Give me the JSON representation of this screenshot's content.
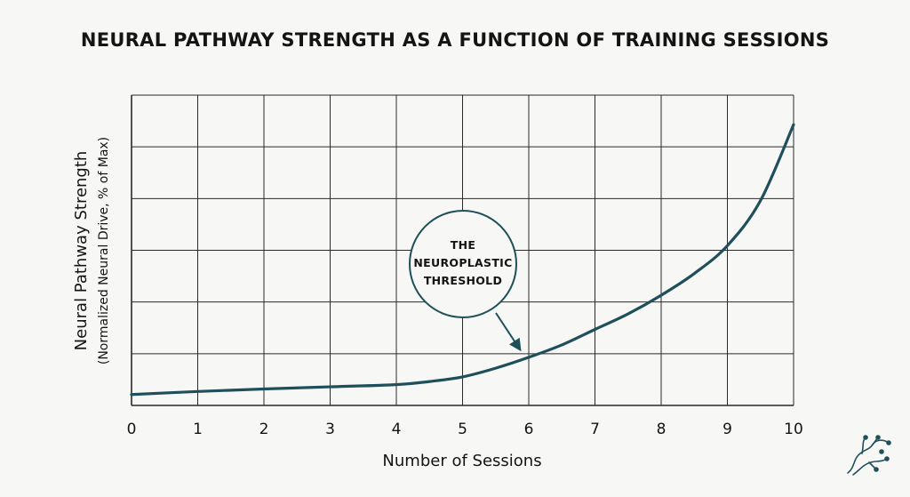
{
  "title": "NEURAL PATHWAY STRENGTH AS A FUNCTION OF TRAINING SESSIONS",
  "chart_data": {
    "type": "line",
    "title": "NEURAL PATHWAY STRENGTH AS A FUNCTION OF TRAINING SESSIONS",
    "xlabel": "Number of Sessions",
    "ylabel": "Neural Pathway Strength",
    "ylabel_sub": "(Normalized Neural Drive, % of Max)",
    "xlim": [
      0,
      10
    ],
    "ylim": [
      0,
      100
    ],
    "x_ticks": [
      "0",
      "1",
      "2",
      "3",
      "4",
      "5",
      "6",
      "7",
      "8",
      "9",
      "10"
    ],
    "y_tick_labels_shown": false,
    "grid": true,
    "line_color": "#1f4f5a",
    "series": [
      {
        "x": [
          0,
          1,
          2,
          3,
          4,
          4.5,
          5,
          5.5,
          6,
          6.5,
          7,
          7.5,
          8,
          8.5,
          9,
          9.5,
          10
        ],
        "y": [
          3.5,
          4.5,
          5.3,
          6.0,
          6.7,
          7.7,
          9.2,
          12.0,
          15.5,
          19.5,
          24.5,
          29.5,
          35.5,
          42.5,
          51.5,
          66.0,
          90.5
        ]
      }
    ],
    "annotations": [
      {
        "lines": [
          "THE",
          "NEUROPLASTIC",
          "THRESHOLD"
        ],
        "points_to": {
          "x": 6,
          "y": 15.5
        }
      }
    ]
  }
}
